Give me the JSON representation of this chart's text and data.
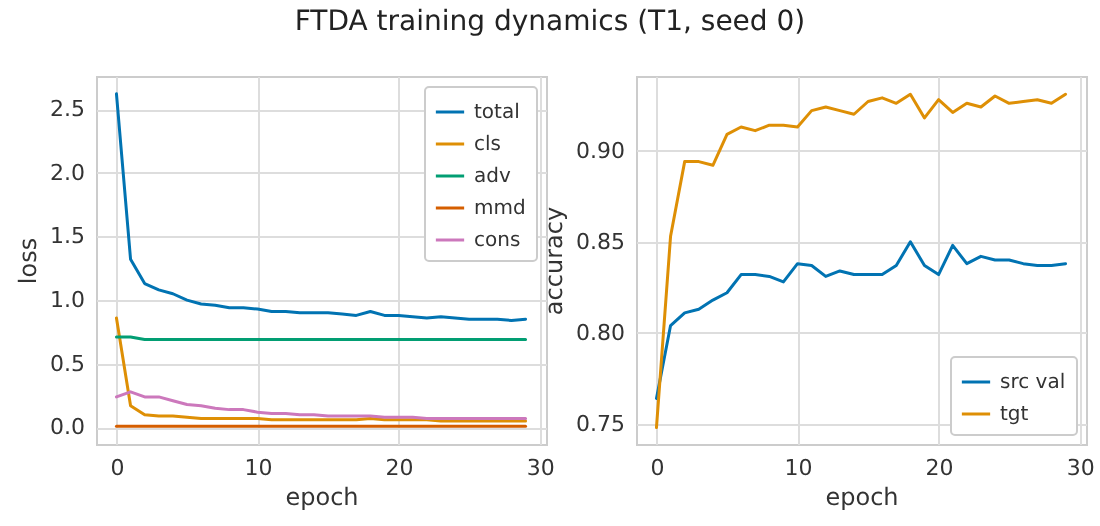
{
  "chart_data": [
    {
      "type": "line",
      "title": "FTDA training dynamics (T1, seed 0)",
      "xlabel": "epoch",
      "ylabel": "loss",
      "x": [
        0,
        1,
        2,
        3,
        4,
        5,
        6,
        7,
        8,
        9,
        10,
        11,
        12,
        13,
        14,
        15,
        16,
        17,
        18,
        19,
        20,
        21,
        22,
        23,
        24,
        25,
        26,
        27,
        28,
        29
      ],
      "xlim": [
        -1.45,
        30.45
      ],
      "xticks": [
        0,
        10,
        20,
        30
      ],
      "ylim": [
        -0.13,
        2.76
      ],
      "yticks": [
        {
          "value": 0,
          "label": "0.0"
        },
        {
          "value": 0.5,
          "label": "0.5"
        },
        {
          "value": 1,
          "label": "1.0"
        },
        {
          "value": 1.5,
          "label": "1.5"
        },
        {
          "value": 2,
          "label": "2.0"
        },
        {
          "value": 2.5,
          "label": "2.5"
        }
      ],
      "grid": true,
      "legend": "top right",
      "line_style": "solid",
      "series": [
        {
          "name": "total",
          "color": "#0173b2",
          "values": [
            2.62,
            1.32,
            1.13,
            1.08,
            1.05,
            1.0,
            0.97,
            0.96,
            0.94,
            0.94,
            0.93,
            0.91,
            0.91,
            0.9,
            0.9,
            0.9,
            0.89,
            0.88,
            0.91,
            0.88,
            0.88,
            0.87,
            0.86,
            0.87,
            0.86,
            0.85,
            0.85,
            0.85,
            0.84,
            0.85
          ]
        },
        {
          "name": "cls",
          "color": "#de8f05",
          "values": [
            0.86,
            0.17,
            0.1,
            0.09,
            0.09,
            0.08,
            0.07,
            0.07,
            0.07,
            0.07,
            0.07,
            0.06,
            0.06,
            0.06,
            0.06,
            0.06,
            0.06,
            0.06,
            0.07,
            0.06,
            0.06,
            0.06,
            0.06,
            0.05,
            0.05,
            0.05,
            0.05,
            0.05,
            0.05,
            0.05
          ]
        },
        {
          "name": "adv",
          "color": "#029e73",
          "values": [
            0.71,
            0.71,
            0.69,
            0.69,
            0.69,
            0.69,
            0.69,
            0.69,
            0.69,
            0.69,
            0.69,
            0.69,
            0.69,
            0.69,
            0.69,
            0.69,
            0.69,
            0.69,
            0.69,
            0.69,
            0.69,
            0.69,
            0.69,
            0.69,
            0.69,
            0.69,
            0.69,
            0.69,
            0.69,
            0.69
          ]
        },
        {
          "name": "mmd",
          "color": "#d55e00",
          "values": [
            0.01,
            0.01,
            0.01,
            0.01,
            0.01,
            0.01,
            0.01,
            0.01,
            0.01,
            0.01,
            0.01,
            0.01,
            0.01,
            0.01,
            0.01,
            0.01,
            0.01,
            0.01,
            0.01,
            0.01,
            0.01,
            0.01,
            0.01,
            0.01,
            0.01,
            0.01,
            0.01,
            0.01,
            0.01,
            0.01
          ]
        },
        {
          "name": "cons",
          "color": "#cc78bc",
          "values": [
            0.24,
            0.28,
            0.24,
            0.24,
            0.21,
            0.18,
            0.17,
            0.15,
            0.14,
            0.14,
            0.12,
            0.11,
            0.11,
            0.1,
            0.1,
            0.09,
            0.09,
            0.09,
            0.09,
            0.08,
            0.08,
            0.08,
            0.07,
            0.07,
            0.07,
            0.07,
            0.07,
            0.07,
            0.07,
            0.07
          ]
        }
      ]
    },
    {
      "type": "line",
      "xlabel": "epoch",
      "ylabel": "accuracy",
      "x": [
        0,
        1,
        2,
        3,
        4,
        5,
        6,
        7,
        8,
        9,
        10,
        11,
        12,
        13,
        14,
        15,
        16,
        17,
        18,
        19,
        20,
        21,
        22,
        23,
        24,
        25,
        26,
        27,
        28,
        29
      ],
      "xlim": [
        -1.45,
        30.45
      ],
      "xticks": [
        0,
        10,
        20,
        30
      ],
      "ylim": [
        0.739,
        0.941
      ],
      "yticks": [
        {
          "value": 0.75,
          "label": "0.75"
        },
        {
          "value": 0.8,
          "label": "0.80"
        },
        {
          "value": 0.85,
          "label": "0.85"
        },
        {
          "value": 0.9,
          "label": "0.90"
        }
      ],
      "grid": true,
      "legend": "bottom right",
      "line_style": "solid",
      "series": [
        {
          "name": "src val",
          "color": "#0173b2",
          "values": [
            0.764,
            0.804,
            0.811,
            0.813,
            0.818,
            0.822,
            0.832,
            0.832,
            0.831,
            0.828,
            0.838,
            0.837,
            0.831,
            0.834,
            0.832,
            0.832,
            0.832,
            0.837,
            0.85,
            0.837,
            0.832,
            0.848,
            0.838,
            0.842,
            0.84,
            0.84,
            0.838,
            0.837,
            0.837,
            0.838
          ]
        },
        {
          "name": "tgt",
          "color": "#de8f05",
          "values": [
            0.748,
            0.853,
            0.894,
            0.894,
            0.892,
            0.909,
            0.913,
            0.911,
            0.914,
            0.914,
            0.913,
            0.922,
            0.924,
            0.922,
            0.92,
            0.927,
            0.929,
            0.926,
            0.931,
            0.918,
            0.928,
            0.921,
            0.926,
            0.924,
            0.93,
            0.926,
            0.927,
            0.928,
            0.926,
            0.931
          ]
        }
      ]
    }
  ]
}
